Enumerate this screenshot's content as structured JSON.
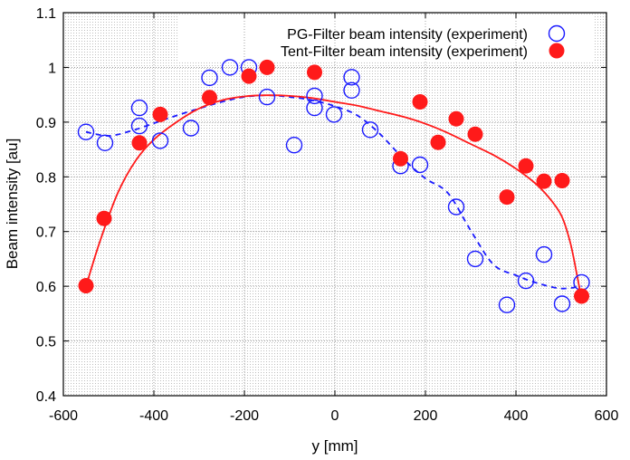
{
  "chart_data": {
    "type": "scatter",
    "xlabel": "y [mm]",
    "ylabel": "Beam intensity [au]",
    "xlim": [
      -600,
      600
    ],
    "ylim": [
      0.4,
      1.1
    ],
    "xticks": [
      -600,
      -400,
      -200,
      0,
      200,
      400,
      600
    ],
    "yticks": [
      0.4,
      0.5,
      0.6,
      0.7,
      0.8,
      0.9,
      1.0,
      1.1
    ],
    "xtick_labels": [
      "-600",
      "-400",
      "-200",
      "0",
      "200",
      "400",
      "600"
    ],
    "ytick_labels": [
      "0.4",
      "0.5",
      "0.6",
      "0.7",
      "0.8",
      "0.9",
      "1",
      "1.1"
    ],
    "grid": true,
    "legend_position": "top-right",
    "series": [
      {
        "name": "PG-Filter beam intensity (experiment)",
        "marker": "open-circle",
        "color": "#1a1aff",
        "points": [
          [
            -550,
            0.882
          ],
          [
            -508,
            0.862
          ],
          [
            -432,
            0.926
          ],
          [
            -432,
            0.893
          ],
          [
            -386,
            0.866
          ],
          [
            -318,
            0.889
          ],
          [
            -277,
            0.981
          ],
          [
            -232,
            1.0
          ],
          [
            -190,
            1.0
          ],
          [
            -150,
            0.946
          ],
          [
            -90,
            0.858
          ],
          [
            -45,
            0.948
          ],
          [
            -45,
            0.926
          ],
          [
            -2,
            0.914
          ],
          [
            37,
            0.982
          ],
          [
            37,
            0.958
          ],
          [
            78,
            0.886
          ],
          [
            145,
            0.82
          ],
          [
            188,
            0.822
          ],
          [
            268,
            0.745
          ],
          [
            310,
            0.65
          ],
          [
            380,
            0.566
          ],
          [
            422,
            0.61
          ],
          [
            462,
            0.658
          ],
          [
            502,
            0.568
          ],
          [
            545,
            0.607
          ]
        ],
        "fit": {
          "style": "dashed",
          "points": [
            [
              -550,
              0.882
            ],
            [
              -500,
              0.875
            ],
            [
              -450,
              0.884
            ],
            [
              -400,
              0.898
            ],
            [
              -350,
              0.912
            ],
            [
              -300,
              0.925
            ],
            [
              -250,
              0.937
            ],
            [
              -200,
              0.946
            ],
            [
              -150,
              0.949
            ],
            [
              -100,
              0.946
            ],
            [
              -50,
              0.94
            ],
            [
              0,
              0.929
            ],
            [
              50,
              0.912
            ],
            [
              100,
              0.878
            ],
            [
              150,
              0.834
            ],
            [
              200,
              0.797
            ],
            [
              250,
              0.77
            ],
            [
              300,
              0.702
            ],
            [
              350,
              0.64
            ],
            [
              400,
              0.62
            ],
            [
              450,
              0.605
            ],
            [
              500,
              0.596
            ],
            [
              545,
              0.6
            ]
          ]
        }
      },
      {
        "name": "Tent-Filter beam intensity (experiment)",
        "marker": "filled-circle",
        "color": "#ff1a1a",
        "points": [
          [
            -550,
            0.601
          ],
          [
            -510,
            0.724
          ],
          [
            -432,
            0.862
          ],
          [
            -386,
            0.914
          ],
          [
            -277,
            0.945
          ],
          [
            -190,
            0.984
          ],
          [
            -150,
            1.0
          ],
          [
            -45,
            0.991
          ],
          [
            145,
            0.833
          ],
          [
            188,
            0.937
          ],
          [
            228,
            0.863
          ],
          [
            268,
            0.906
          ],
          [
            310,
            0.878
          ],
          [
            380,
            0.763
          ],
          [
            422,
            0.82
          ],
          [
            462,
            0.792
          ],
          [
            502,
            0.793
          ],
          [
            545,
            0.582
          ]
        ],
        "fit": {
          "style": "solid",
          "points": [
            [
              -550,
              0.6
            ],
            [
              -520,
              0.68
            ],
            [
              -480,
              0.77
            ],
            [
              -440,
              0.83
            ],
            [
              -400,
              0.868
            ],
            [
              -350,
              0.9
            ],
            [
              -300,
              0.925
            ],
            [
              -250,
              0.94
            ],
            [
              -200,
              0.947
            ],
            [
              -150,
              0.949
            ],
            [
              -100,
              0.948
            ],
            [
              -50,
              0.944
            ],
            [
              0,
              0.937
            ],
            [
              50,
              0.93
            ],
            [
              100,
              0.92
            ],
            [
              150,
              0.91
            ],
            [
              200,
              0.897
            ],
            [
              250,
              0.88
            ],
            [
              300,
              0.86
            ],
            [
              350,
              0.84
            ],
            [
              400,
              0.815
            ],
            [
              440,
              0.79
            ],
            [
              470,
              0.765
            ],
            [
              500,
              0.73
            ],
            [
              520,
              0.68
            ],
            [
              535,
              0.62
            ],
            [
              545,
              0.575
            ]
          ]
        }
      }
    ]
  }
}
